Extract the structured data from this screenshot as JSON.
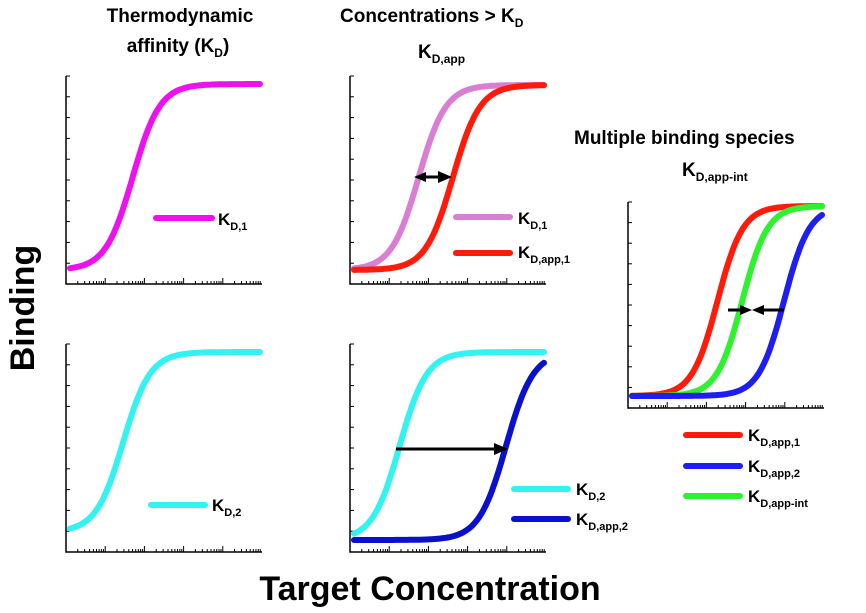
{
  "colors": {
    "magenta": "#ee10ee",
    "orchid": "#d97ed2",
    "red": "#ff1a0a",
    "cyan": "#33f2f2",
    "navy": "#0a10cc",
    "blue": "#1e1ef0",
    "green": "#2ff22f"
  },
  "axes": {
    "ylabel": "Binding",
    "xlabel": "Target Concentration"
  },
  "columns": {
    "left": {
      "title_line1": "Thermodynamic",
      "title_line2": "affinity (K",
      "title_sub": "D",
      "title_close": ")"
    },
    "middle": {
      "title_line1": "Concentrations > K",
      "title_line1_sub": "D",
      "title_line2": "K",
      "title_line2_sub": "D,app"
    },
    "right": {
      "title_line1": "Multiple binding species",
      "title_line2": "K",
      "title_line2_sub": "D,app-int"
    }
  },
  "panels": {
    "top_left": {
      "curves": [
        {
          "color_key": "magenta",
          "midpoint": 0.33,
          "steepness": 14
        }
      ],
      "legend": [
        {
          "color_key": "magenta",
          "label": "K",
          "sub": "D,1"
        }
      ]
    },
    "top_middle": {
      "curves": [
        {
          "color_key": "orchid",
          "midpoint": 0.34,
          "steepness": 14
        },
        {
          "color_key": "red",
          "midpoint": 0.52,
          "steepness": 14
        }
      ],
      "legend": [
        {
          "color_key": "orchid",
          "label": "K",
          "sub": "D,1"
        },
        {
          "color_key": "red",
          "label": "K",
          "sub": "D,app,1"
        }
      ]
    },
    "bottom_left": {
      "curves": [
        {
          "color_key": "cyan",
          "midpoint": 0.28,
          "steepness": 14
        }
      ],
      "legend": [
        {
          "color_key": "cyan",
          "label": "K",
          "sub": "D,2"
        }
      ]
    },
    "bottom_middle": {
      "curves": [
        {
          "color_key": "cyan",
          "midpoint": 0.24,
          "steepness": 14
        },
        {
          "color_key": "navy",
          "midpoint": 0.8,
          "steepness": 14
        }
      ],
      "legend": [
        {
          "color_key": "cyan",
          "label": "K",
          "sub": "D,2"
        },
        {
          "color_key": "navy",
          "label": "K",
          "sub": "D,app,2"
        }
      ]
    },
    "right": {
      "curves": [
        {
          "color_key": "red",
          "midpoint": 0.45,
          "steepness": 15
        },
        {
          "color_key": "green",
          "midpoint": 0.58,
          "steepness": 15
        },
        {
          "color_key": "blue",
          "midpoint": 0.8,
          "steepness": 15
        }
      ],
      "legend": [
        {
          "color_key": "red",
          "label": "K",
          "sub": "D,app,1"
        },
        {
          "color_key": "blue",
          "label": "K",
          "sub": "D,app,2"
        },
        {
          "color_key": "green",
          "label": "K",
          "sub": "D,app-int"
        }
      ]
    }
  }
}
